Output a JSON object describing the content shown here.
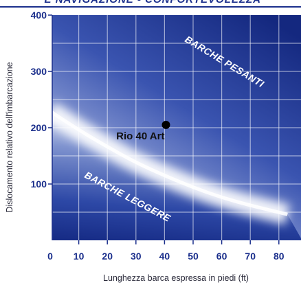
{
  "header": {
    "banner_text": "E NAVIGAZIONE - CONFORTEVOLEZZA"
  },
  "chart_data": {
    "type": "scatter",
    "title": "",
    "xlabel": "Lunghezza barca espressa in piedi (ft)",
    "ylabel": "Dislocamento relativo dell'imbarcazione",
    "xlim": [
      0,
      83
    ],
    "ylim": [
      0,
      400
    ],
    "x_ticks": [
      0,
      10,
      20,
      30,
      40,
      50,
      60,
      70,
      80
    ],
    "x_tick_labels": [
      "0",
      "10",
      "20",
      "30",
      "40",
      "50",
      "60",
      "70",
      "80"
    ],
    "y_ticks": [
      100,
      200,
      300,
      400
    ],
    "y_tick_labels": [
      "100",
      "200",
      "300",
      "400"
    ],
    "grid": true,
    "points": [
      {
        "x": 40.5,
        "y": 205,
        "label": "Rio 40 Art"
      }
    ],
    "regions": [
      {
        "label": "BARCHE PESANTI"
      },
      {
        "label": "BARCHE LEGGERE"
      }
    ],
    "boundary_curve": {
      "x": [
        0,
        10,
        20,
        30,
        40,
        50,
        60,
        70,
        83
      ],
      "y": [
        230,
        196,
        166,
        138,
        115,
        94,
        76,
        62,
        46
      ]
    },
    "colors": {
      "dark_blue": "#1b2f8c",
      "mid_blue": "#6e83c4",
      "light_band": "#ffffff",
      "grid_line": "#ffffff"
    }
  }
}
